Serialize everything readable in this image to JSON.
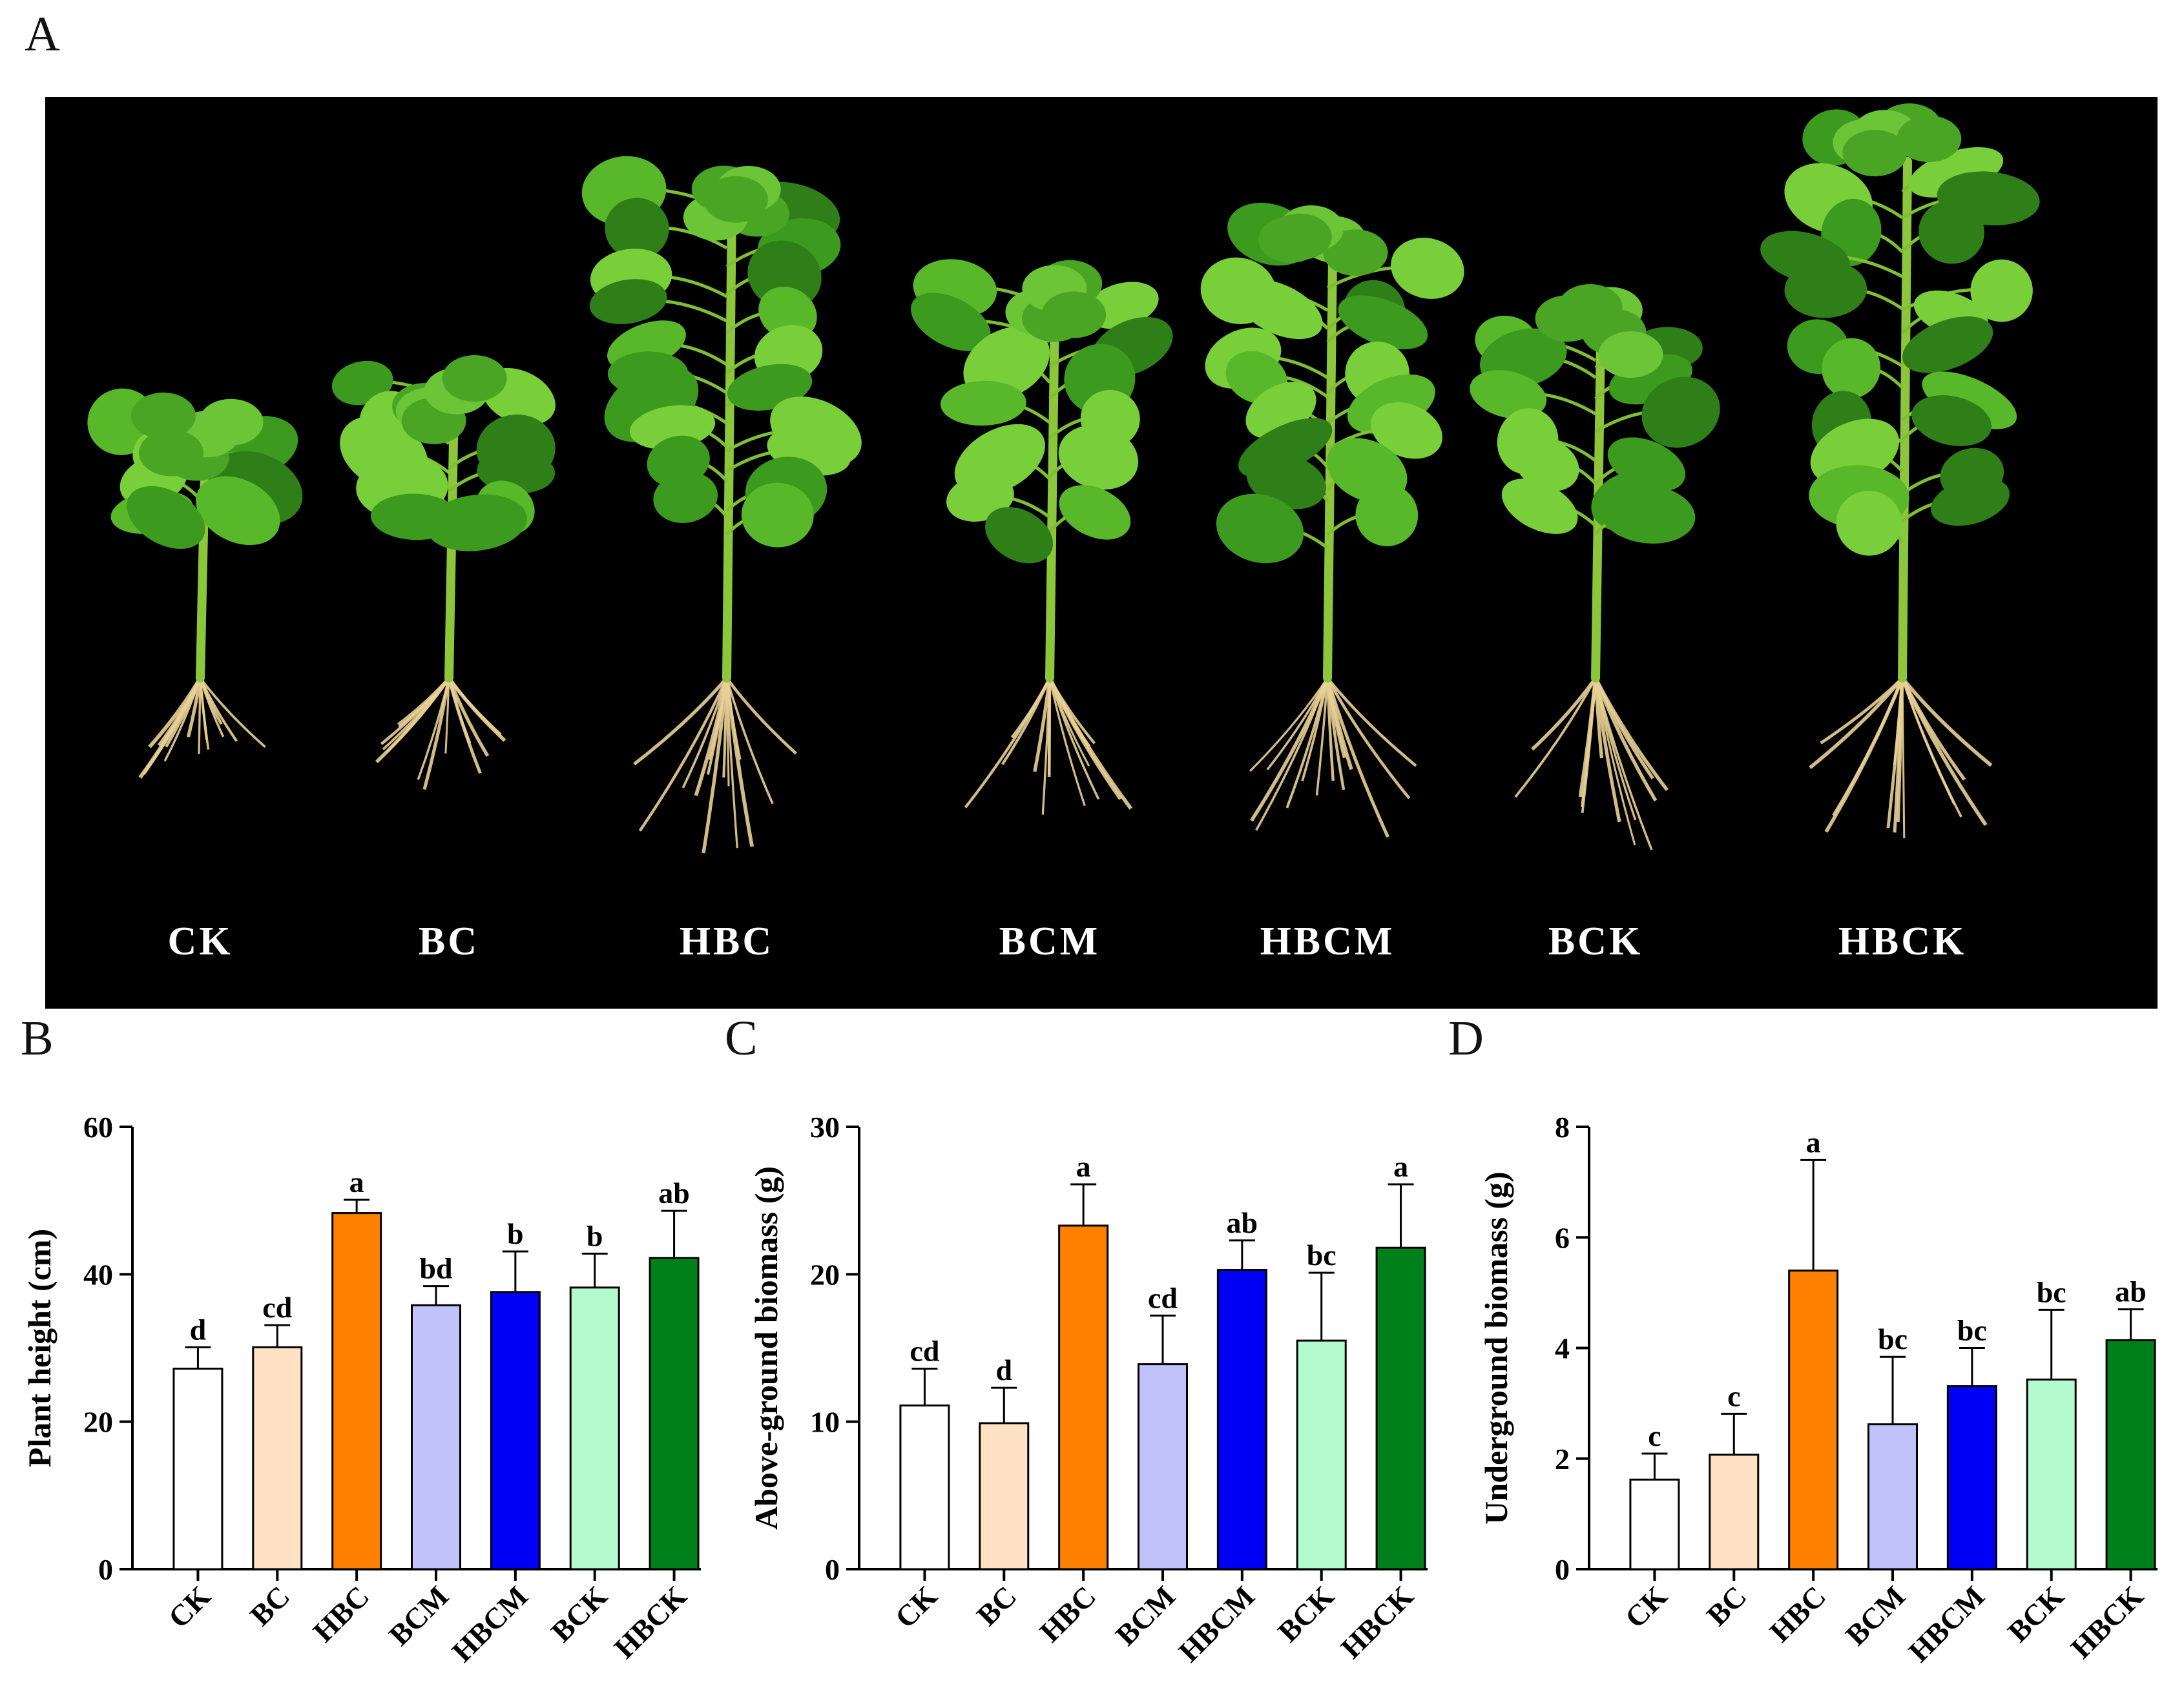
{
  "figure": {
    "panel_labels": {
      "a": "A",
      "b": "B",
      "c": "C",
      "d": "D"
    },
    "photo": {
      "plants": [
        {
          "label": "CK"
        },
        {
          "label": "BC"
        },
        {
          "label": "HBC"
        },
        {
          "label": "BCM"
        },
        {
          "label": "HBCM"
        },
        {
          "label": "BCK"
        },
        {
          "label": "HBCK"
        }
      ]
    },
    "colors": {
      "CK": "#ffffff",
      "BC": "#ffe2c4",
      "HBC": "#ff7f00",
      "BCM": "#c2c2fb",
      "HBCM": "#0000f5",
      "BCK": "#b3fbcf",
      "HBCK": "#00801a"
    }
  },
  "chart_data": [
    {
      "type": "bar",
      "panel": "B",
      "ylabel": "Plant height (cm)",
      "xlabel": "",
      "categories": [
        "CK",
        "BC",
        "HBC",
        "BCM",
        "HBCM",
        "BCK",
        "HBCK"
      ],
      "values": [
        27.2,
        30.1,
        48.3,
        35.8,
        37.6,
        38.2,
        42.2
      ],
      "errors": [
        2.9,
        3.0,
        1.8,
        2.6,
        5.5,
        4.6,
        6.4
      ],
      "significance": [
        "d",
        "cd",
        "a",
        "bd",
        "b",
        "b",
        "ab"
      ],
      "ylim": [
        0,
        60
      ],
      "yticks": [
        0,
        20,
        40,
        60
      ],
      "ytick_labels": [
        "0",
        "20",
        "40",
        "60"
      ]
    },
    {
      "type": "bar",
      "panel": "C",
      "ylabel": "Above-ground biomass (g)",
      "xlabel": "",
      "categories": [
        "CK",
        "BC",
        "HBC",
        "BCM",
        "HBCM",
        "BCK",
        "HBCK"
      ],
      "values": [
        11.1,
        9.9,
        23.3,
        13.9,
        20.3,
        15.5,
        21.8
      ],
      "errors": [
        2.5,
        2.4,
        2.8,
        3.3,
        2.0,
        4.6,
        4.3
      ],
      "significance": [
        "cd",
        "d",
        "a",
        "cd",
        "ab",
        "bc",
        "a"
      ],
      "ylim": [
        0,
        30
      ],
      "yticks": [
        0,
        10,
        20,
        30
      ],
      "ytick_labels": [
        "0",
        "10",
        "20",
        "30"
      ]
    },
    {
      "type": "bar",
      "panel": "D",
      "ylabel": "Underground biomass (g)",
      "xlabel": "",
      "categories": [
        "CK",
        "BC",
        "HBC",
        "BCM",
        "HBCM",
        "BCK",
        "HBCK"
      ],
      "values": [
        1.62,
        2.07,
        5.4,
        2.62,
        3.31,
        3.43,
        4.14
      ],
      "errors": [
        0.47,
        0.74,
        2.0,
        1.22,
        0.69,
        1.26,
        0.56
      ],
      "significance": [
        "c",
        "c",
        "a",
        "bc",
        "bc",
        "bc",
        "ab"
      ],
      "ylim": [
        0,
        8
      ],
      "yticks": [
        0,
        2,
        4,
        6,
        8
      ],
      "ytick_labels": [
        "0",
        "2",
        "4",
        "6",
        "8"
      ]
    }
  ]
}
